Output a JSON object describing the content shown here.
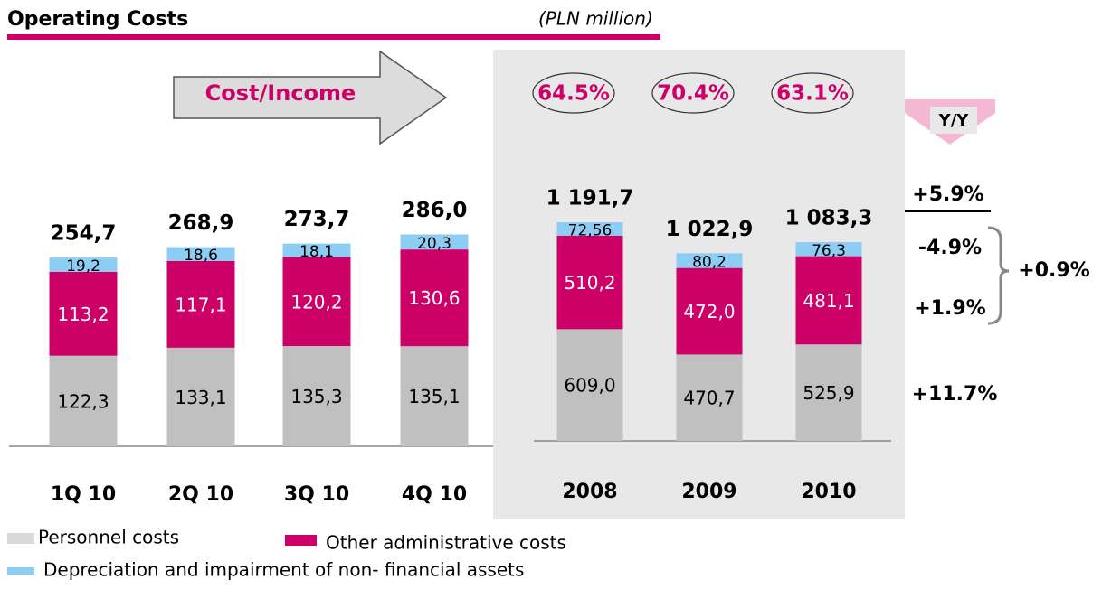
{
  "title": "Operating Costs",
  "subtitle": "(PLN million)",
  "chart_data": [
    {
      "type": "bar",
      "stacked": true,
      "categories": [
        "1Q 10",
        "2Q 10",
        "3Q 10",
        "4Q 10"
      ],
      "series": [
        {
          "name": "Personnel costs",
          "color": "#c0c0c0",
          "values": [
            122.3,
            133.1,
            135.3,
            135.1
          ],
          "value_labels": [
            "122,3",
            "133,1",
            "135,3",
            "135,1"
          ]
        },
        {
          "name": "Other administrative costs",
          "color": "#cc0066",
          "values": [
            113.2,
            117.1,
            120.2,
            130.6
          ],
          "value_labels": [
            "113,2",
            "117,1",
            "120,2",
            "130,6"
          ]
        },
        {
          "name": "Depreciation and impairment  of non- financial assets",
          "color": "#8ecdf3",
          "values": [
            19.2,
            18.6,
            18.1,
            20.3
          ],
          "value_labels": [
            "19,2",
            "18,6",
            "18,1",
            "20,3"
          ]
        }
      ],
      "totals": [
        254.7,
        268.9,
        273.7,
        286.0
      ],
      "total_labels": [
        "254,7",
        "268,9",
        "273,7",
        "286,0"
      ]
    },
    {
      "type": "bar",
      "stacked": true,
      "categories": [
        "2008",
        "2009",
        "2010"
      ],
      "series": [
        {
          "color": "#c0c0c0",
          "values": [
            609.0,
            470.7,
            525.9
          ],
          "value_labels": [
            "609,0",
            "470,7",
            "525,9"
          ]
        },
        {
          "color": "#cc0066",
          "values": [
            510.2,
            472.0,
            481.1
          ],
          "value_labels": [
            "510,2",
            "472,0",
            "481,1"
          ]
        },
        {
          "color": "#8ecdf3",
          "values": [
            72.56,
            80.2,
            76.3
          ],
          "value_labels": [
            "72,56",
            "80,2",
            "76,3"
          ]
        }
      ],
      "totals": [
        1191.7,
        1022.9,
        1083.3
      ],
      "total_labels": [
        "1 191,7",
        "1 022,9",
        "1 083,3"
      ],
      "ratio_label": "Cost/Income",
      "ratios": [
        64.5,
        70.4,
        63.1
      ],
      "ratio_labels": [
        "64.5%",
        "70.4%",
        "63.1%"
      ],
      "yoy": {
        "label": "Y/Y",
        "total": "+5.9%",
        "depreciation": "-4.9%",
        "other": "+1.9%",
        "personnel": "+11.7%",
        "non_personnel": "+0.9%"
      }
    }
  ]
}
